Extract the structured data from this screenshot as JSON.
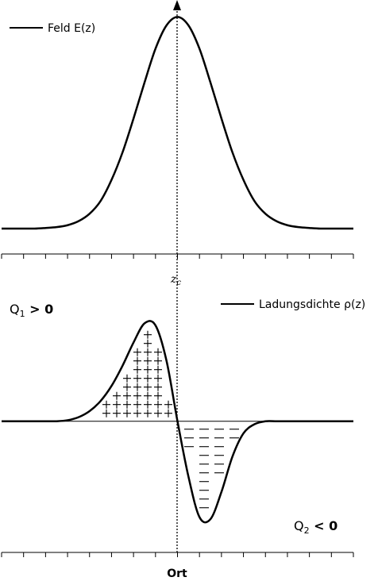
{
  "chart_data": [
    {
      "type": "line",
      "legend": "upper left",
      "x": [
        0,
        0.25,
        0.5,
        0.75,
        1,
        1.25,
        1.5,
        1.75,
        2,
        2.25,
        2.5,
        2.75,
        3,
        3.25,
        3.5,
        3.75,
        4,
        4.25,
        4.5,
        4.75,
        5,
        5.25,
        5.5,
        5.75,
        6,
        6.25,
        6.5,
        6.75,
        7,
        7.25,
        7.5,
        7.75,
        8
      ],
      "series": [
        {
          "name": "Feld E(z)",
          "color": "#000000",
          "values": [
            0,
            0,
            0,
            0,
            0.003,
            0.007,
            0.016,
            0.035,
            0.07,
            0.13,
            0.23,
            0.36,
            0.52,
            0.69,
            0.85,
            0.96,
            1,
            0.96,
            0.85,
            0.69,
            0.52,
            0.36,
            0.23,
            0.13,
            0.07,
            0.035,
            0.016,
            0.007,
            0.003,
            0,
            0,
            0,
            0
          ]
        }
      ],
      "xlim": [
        0,
        8
      ],
      "xticks": [
        0,
        0.5,
        1,
        1.5,
        2,
        2.5,
        3,
        3.5,
        4,
        4.5,
        5,
        5.5,
        6,
        6.5,
        7,
        7.5,
        8
      ],
      "ylim": [
        -0.12,
        1.08
      ],
      "annotations": [
        {
          "text": "z",
          "sub": "c"
        }
      ]
    },
    {
      "type": "line",
      "legend": "upper right",
      "x_label": "Ort",
      "x": [
        0,
        0.25,
        0.5,
        0.75,
        1,
        1.25,
        1.5,
        1.75,
        2,
        2.25,
        2.5,
        2.75,
        3,
        3.25,
        3.5,
        3.75,
        4,
        4.25,
        4.5,
        4.75,
        5,
        5.25,
        5.5,
        5.75,
        6,
        6.25,
        6.5,
        6.75,
        7,
        7.25,
        7.5,
        7.75,
        8
      ],
      "series": [
        {
          "name": "Ladungsdichte ρ(z)",
          "color": "#000000",
          "values": [
            0,
            0,
            0,
            0,
            0,
            0,
            0.01,
            0.04,
            0.1,
            0.2,
            0.35,
            0.55,
            0.78,
            0.97,
            0.95,
            0.6,
            0,
            -0.55,
            -0.95,
            -0.97,
            -0.7,
            -0.35,
            -0.12,
            -0.03,
            0,
            0,
            0,
            0,
            0,
            0,
            0,
            0,
            0
          ]
        }
      ],
      "xlim": [
        0,
        8
      ],
      "xticks": [
        0,
        0.5,
        1,
        1.5,
        2,
        2.5,
        3,
        3.5,
        4,
        4.5,
        5,
        5.5,
        6,
        6.5,
        7,
        7.5,
        8
      ],
      "ylim": [
        -1.3,
        1.5
      ],
      "annotations": [
        {
          "text": "Q",
          "sub": "1",
          "after": " > 0"
        },
        {
          "text": "Q",
          "sub": "2",
          "after": " < 0"
        }
      ]
    }
  ]
}
